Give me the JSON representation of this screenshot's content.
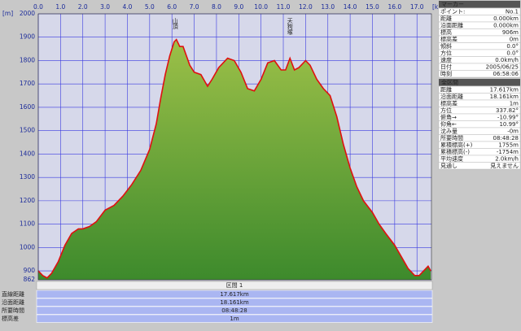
{
  "chart_data": {
    "type": "area",
    "y_unit": "[m]",
    "x_unit": "[km]",
    "x": [
      0.0,
      0.2,
      0.4,
      0.6,
      0.9,
      1.2,
      1.5,
      1.8,
      2.0,
      2.3,
      2.6,
      3.0,
      3.4,
      3.8,
      4.2,
      4.6,
      5.0,
      5.3,
      5.5,
      5.7,
      5.9,
      6.1,
      6.2,
      6.35,
      6.5,
      6.8,
      7.0,
      7.3,
      7.6,
      7.8,
      8.1,
      8.5,
      8.8,
      9.1,
      9.4,
      9.7,
      10.0,
      10.3,
      10.6,
      10.9,
      11.1,
      11.3,
      11.5,
      11.7,
      12.0,
      12.2,
      12.5,
      12.8,
      13.1,
      13.4,
      13.7,
      14.0,
      14.3,
      14.6,
      15.0,
      15.3,
      15.6,
      16.0,
      16.3,
      16.6,
      16.9,
      17.1,
      17.3,
      17.5,
      17.617
    ],
    "values": [
      900,
      880,
      870,
      890,
      940,
      1010,
      1060,
      1080,
      1080,
      1090,
      1110,
      1160,
      1180,
      1220,
      1270,
      1330,
      1420,
      1530,
      1640,
      1740,
      1820,
      1880,
      1890,
      1860,
      1860,
      1780,
      1750,
      1740,
      1690,
      1720,
      1770,
      1810,
      1800,
      1750,
      1680,
      1670,
      1720,
      1790,
      1800,
      1760,
      1760,
      1810,
      1760,
      1770,
      1800,
      1780,
      1720,
      1680,
      1650,
      1560,
      1440,
      1340,
      1260,
      1200,
      1150,
      1100,
      1060,
      1010,
      960,
      910,
      880,
      880,
      900,
      920,
      900
    ],
    "xlim": [
      0,
      17.65
    ],
    "ylim": [
      862,
      2000
    ],
    "xticks": [
      {
        "value": 0,
        "label": "0.0"
      },
      {
        "value": 1,
        "label": "1.0"
      },
      {
        "value": 2,
        "label": "2.0"
      },
      {
        "value": 3,
        "label": "3.0"
      },
      {
        "value": 4,
        "label": "4.0"
      },
      {
        "value": 5,
        "label": "5.0"
      },
      {
        "value": 6,
        "label": "6.0"
      },
      {
        "value": 7,
        "label": "7.0"
      },
      {
        "value": 8,
        "label": "8.0"
      },
      {
        "value": 9,
        "label": "9.0"
      },
      {
        "value": 10,
        "label": "10.0"
      },
      {
        "value": 11,
        "label": "11.0"
      },
      {
        "value": 12,
        "label": "12.0"
      },
      {
        "value": 13,
        "label": "13.0"
      },
      {
        "value": 14,
        "label": "14.0"
      },
      {
        "value": 15,
        "label": "15.0"
      },
      {
        "value": 16,
        "label": "16.0"
      },
      {
        "value": 17,
        "label": "17.0"
      }
    ],
    "yticks": [
      862,
      900,
      1000,
      1100,
      1200,
      1300,
      1400,
      1500,
      1600,
      1700,
      1800,
      1900,
      2000
    ],
    "grid": true,
    "line_color": "#e01010",
    "fill_top": "#9cc048",
    "fill_bottom": "#3d8a2c",
    "annotations": [
      {
        "text": "山頂",
        "x": 6.15
      },
      {
        "text": "天狗塚",
        "x": 11.3
      }
    ]
  },
  "section": {
    "title": "区間 1",
    "rows": [
      [
        "直線距離",
        "17.617km"
      ],
      [
        "沿面距離",
        "18.161km"
      ],
      [
        "所要時間",
        "08:48:28"
      ],
      [
        "標高差",
        "1m"
      ]
    ]
  },
  "marker_panel": {
    "title": "マーカー",
    "rows": [
      [
        "ポイント:",
        "No.1"
      ],
      [
        "距離",
        "0.000km"
      ],
      [
        "沿面距離",
        "0.000km"
      ],
      [
        "標高",
        "906m"
      ],
      [
        "標高差",
        "0m"
      ],
      [
        "傾斜",
        "0.0°"
      ],
      [
        "方位",
        "0.0°"
      ],
      [
        "速度",
        "0.0km/h"
      ],
      [
        "日付",
        "2005/06/25"
      ],
      [
        "時刻",
        "06:58:06"
      ]
    ]
  },
  "total_panel": {
    "title": "全区間",
    "rows": [
      [
        "距離",
        "17.617km"
      ],
      [
        "沿面距離",
        "18.161km"
      ],
      [
        "標高差",
        "1m"
      ],
      [
        "方位",
        "337.82°"
      ],
      [
        "俯角→",
        "-10.99°"
      ],
      [
        "仰角←",
        "10.99°"
      ],
      [
        "沈み量",
        "-0m"
      ],
      [
        "所要時間",
        "08:48:28"
      ],
      [
        "累積標高(+)",
        "1755m"
      ],
      [
        "累積標高(-)",
        "-1754m"
      ],
      [
        "平均速度",
        "2.0km/h"
      ],
      [
        "見通し",
        "見えません"
      ]
    ]
  }
}
